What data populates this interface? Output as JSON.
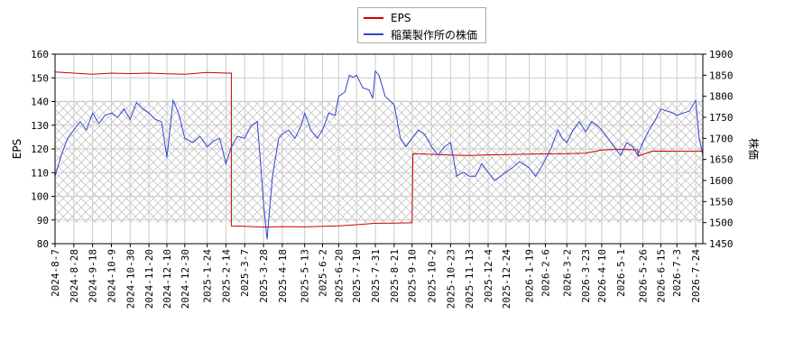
{
  "chart_data": {
    "type": "line",
    "legend": [
      {
        "name": "EPS",
        "color": "#cc0000"
      },
      {
        "name": "稲葉製作所の株価",
        "color": "#3344cc"
      }
    ],
    "ylabel_left": "EPS",
    "ylabel_right": "株価",
    "ylim_left": [
      80,
      160
    ],
    "yticks_left": [
      80,
      90,
      100,
      110,
      120,
      130,
      140,
      150,
      160
    ],
    "ylim_right": [
      1450,
      1900
    ],
    "yticks_right": [
      1450,
      1500,
      1550,
      1600,
      1650,
      1700,
      1750,
      1800,
      1850,
      1900
    ],
    "x_start": "2024-8-7",
    "x_end": "2026-8-1",
    "xticks": [
      "2024-8-7",
      "2024-8-28",
      "2024-9-18",
      "2024-10-9",
      "2024-10-30",
      "2024-11-20",
      "2024-12-10",
      "2024-12-30",
      "2025-1-24",
      "2025-2-14",
      "2025-3-7",
      "2025-3-28",
      "2025-4-18",
      "2025-5-13",
      "2025-6-2",
      "2025-6-20",
      "2025-7-10",
      "2025-7-31",
      "2025-8-21",
      "2025-9-10",
      "2025-10-2",
      "2025-10-23",
      "2025-11-13",
      "2025-12-4",
      "2025-12-24",
      "2026-1-19",
      "2026-2-6",
      "2026-3-2",
      "2026-3-23",
      "2026-4-10",
      "2026-5-1",
      "2026-5-26",
      "2026-6-15",
      "2026-7-3",
      "2026-7-24"
    ],
    "grid": true,
    "shaded_band_right": [
      1500,
      1790
    ],
    "series": [
      {
        "name": "EPS",
        "axis": "left",
        "color": "#cc0000",
        "points": [
          [
            "2024-8-7",
            152.5
          ],
          [
            "2024-8-28",
            152
          ],
          [
            "2024-9-18",
            151.5
          ],
          [
            "2024-10-9",
            152
          ],
          [
            "2024-10-30",
            151.8
          ],
          [
            "2024-11-20",
            152
          ],
          [
            "2024-12-10",
            151.7
          ],
          [
            "2024-12-30",
            151.5
          ],
          [
            "2025-1-24",
            152.3
          ],
          [
            "2025-2-14",
            152
          ],
          [
            "2025-2-20",
            152
          ],
          [
            "2025-2-20",
            87.5
          ],
          [
            "2025-3-7",
            87.3
          ],
          [
            "2025-3-28",
            87
          ],
          [
            "2025-4-18",
            87.2
          ],
          [
            "2025-5-13",
            87.1
          ],
          [
            "2025-6-2",
            87.3
          ],
          [
            "2025-6-20",
            87.5
          ],
          [
            "2025-7-10",
            88
          ],
          [
            "2025-7-31",
            88.6
          ],
          [
            "2025-8-21",
            88.7
          ],
          [
            "2025-9-10",
            88.8
          ],
          [
            "2025-9-11",
            118
          ],
          [
            "2025-10-2",
            117.7
          ],
          [
            "2025-10-23",
            117.4
          ],
          [
            "2025-11-13",
            117.2
          ],
          [
            "2025-12-4",
            117.5
          ],
          [
            "2025-12-24",
            117.6
          ],
          [
            "2026-1-19",
            117.8
          ],
          [
            "2026-2-6",
            117.9
          ],
          [
            "2026-3-2",
            118
          ],
          [
            "2026-3-23",
            118.2
          ],
          [
            "2026-4-10",
            119.5
          ],
          [
            "2026-5-1",
            119.8
          ],
          [
            "2026-5-20",
            119.6
          ],
          [
            "2026-5-21",
            117
          ],
          [
            "2026-6-5",
            119
          ],
          [
            "2026-6-15",
            119.1
          ],
          [
            "2026-7-3",
            119
          ],
          [
            "2026-7-24",
            119
          ],
          [
            "2026-8-1",
            119
          ]
        ]
      },
      {
        "name": "稲葉製作所の株価",
        "axis": "right",
        "color": "#3344cc",
        "points": [
          [
            "2024-8-7",
            1610
          ],
          [
            "2024-8-14",
            1660
          ],
          [
            "2024-8-21",
            1700
          ],
          [
            "2024-8-28",
            1720
          ],
          [
            "2024-9-4",
            1740
          ],
          [
            "2024-9-11",
            1720
          ],
          [
            "2024-9-18",
            1760
          ],
          [
            "2024-9-25",
            1735
          ],
          [
            "2024-10-2",
            1755
          ],
          [
            "2024-10-9",
            1760
          ],
          [
            "2024-10-16",
            1750
          ],
          [
            "2024-10-23",
            1770
          ],
          [
            "2024-10-30",
            1745
          ],
          [
            "2024-11-6",
            1785
          ],
          [
            "2024-11-13",
            1770
          ],
          [
            "2024-11-20",
            1760
          ],
          [
            "2024-11-27",
            1745
          ],
          [
            "2024-12-4",
            1740
          ],
          [
            "2024-12-10",
            1655
          ],
          [
            "2024-12-17",
            1790
          ],
          [
            "2024-12-23",
            1760
          ],
          [
            "2024-12-30",
            1700
          ],
          [
            "2025-1-8",
            1690
          ],
          [
            "2025-1-16",
            1705
          ],
          [
            "2025-1-24",
            1680
          ],
          [
            "2025-2-1",
            1695
          ],
          [
            "2025-2-7",
            1700
          ],
          [
            "2025-2-14",
            1640
          ],
          [
            "2025-2-20",
            1680
          ],
          [
            "2025-2-27",
            1705
          ],
          [
            "2025-3-7",
            1700
          ],
          [
            "2025-3-14",
            1730
          ],
          [
            "2025-3-21",
            1740
          ],
          [
            "2025-3-24",
            1660
          ],
          [
            "2025-3-28",
            1545
          ],
          [
            "2025-4-1",
            1460
          ],
          [
            "2025-4-7",
            1610
          ],
          [
            "2025-4-14",
            1700
          ],
          [
            "2025-4-18",
            1710
          ],
          [
            "2025-4-25",
            1720
          ],
          [
            "2025-5-2",
            1700
          ],
          [
            "2025-5-9",
            1730
          ],
          [
            "2025-5-13",
            1760
          ],
          [
            "2025-5-20",
            1720
          ],
          [
            "2025-5-27",
            1700
          ],
          [
            "2025-6-2",
            1720
          ],
          [
            "2025-6-9",
            1760
          ],
          [
            "2025-6-16",
            1755
          ],
          [
            "2025-6-20",
            1800
          ],
          [
            "2025-6-27",
            1810
          ],
          [
            "2025-7-2",
            1850
          ],
          [
            "2025-7-6",
            1845
          ],
          [
            "2025-7-10",
            1850
          ],
          [
            "2025-7-17",
            1820
          ],
          [
            "2025-7-24",
            1815
          ],
          [
            "2025-7-28",
            1795
          ],
          [
            "2025-7-31",
            1860
          ],
          [
            "2025-8-4",
            1850
          ],
          [
            "2025-8-11",
            1800
          ],
          [
            "2025-8-21",
            1780
          ],
          [
            "2025-8-28",
            1700
          ],
          [
            "2025-9-3",
            1680
          ],
          [
            "2025-9-10",
            1700
          ],
          [
            "2025-9-17",
            1720
          ],
          [
            "2025-9-24",
            1710
          ],
          [
            "2025-10-2",
            1680
          ],
          [
            "2025-10-9",
            1660
          ],
          [
            "2025-10-16",
            1680
          ],
          [
            "2025-10-23",
            1690
          ],
          [
            "2025-10-30",
            1610
          ],
          [
            "2025-11-6",
            1620
          ],
          [
            "2025-11-13",
            1610
          ],
          [
            "2025-11-20",
            1610
          ],
          [
            "2025-11-27",
            1640
          ],
          [
            "2025-12-4",
            1620
          ],
          [
            "2025-12-11",
            1600
          ],
          [
            "2025-12-18",
            1610
          ],
          [
            "2025-12-24",
            1620
          ],
          [
            "2025-12-31",
            1630
          ],
          [
            "2026-1-8",
            1645
          ],
          [
            "2026-1-19",
            1630
          ],
          [
            "2026-1-26",
            1610
          ],
          [
            "2026-2-1",
            1630
          ],
          [
            "2026-2-6",
            1650
          ],
          [
            "2026-2-13",
            1680
          ],
          [
            "2026-2-20",
            1720
          ],
          [
            "2026-2-25",
            1700
          ],
          [
            "2026-3-2",
            1690
          ],
          [
            "2026-3-9",
            1720
          ],
          [
            "2026-3-16",
            1740
          ],
          [
            "2026-3-23",
            1715
          ],
          [
            "2026-3-30",
            1740
          ],
          [
            "2026-4-5",
            1730
          ],
          [
            "2026-4-10",
            1720
          ],
          [
            "2026-4-17",
            1700
          ],
          [
            "2026-4-24",
            1680
          ],
          [
            "2026-5-1",
            1660
          ],
          [
            "2026-5-8",
            1690
          ],
          [
            "2026-5-15",
            1680
          ],
          [
            "2026-5-20",
            1660
          ],
          [
            "2026-5-26",
            1690
          ],
          [
            "2026-6-2",
            1720
          ],
          [
            "2026-6-8",
            1740
          ],
          [
            "2026-6-15",
            1770
          ],
          [
            "2026-6-22",
            1765
          ],
          [
            "2026-6-29",
            1760
          ],
          [
            "2026-7-3",
            1755
          ],
          [
            "2026-7-10",
            1760
          ],
          [
            "2026-7-17",
            1765
          ],
          [
            "2026-7-24",
            1790
          ],
          [
            "2026-7-28",
            1700
          ],
          [
            "2026-8-1",
            1660
          ]
        ]
      }
    ]
  }
}
